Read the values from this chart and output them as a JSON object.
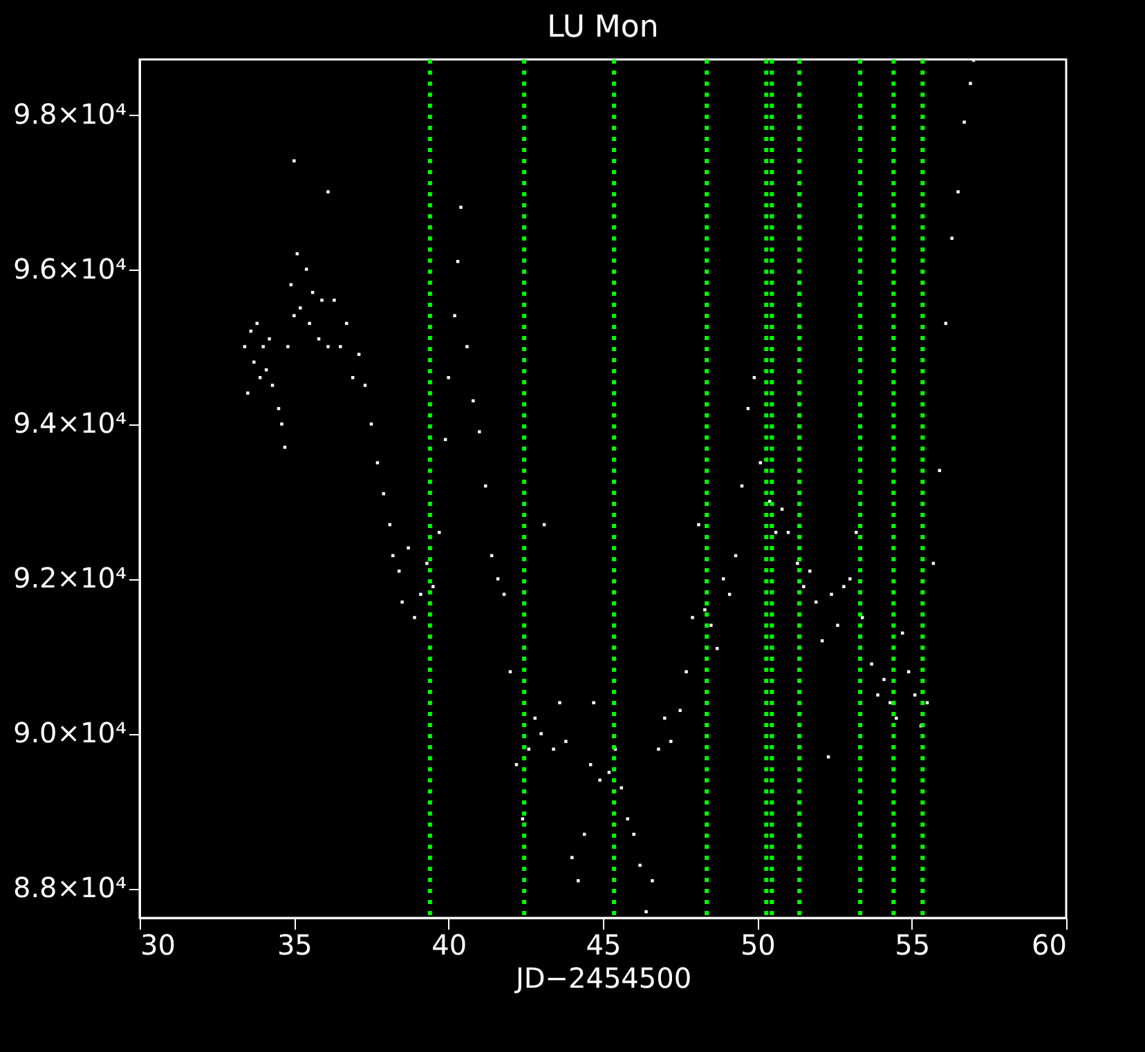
{
  "chart_data": {
    "type": "scatter",
    "title": "LU Mon",
    "xlabel": "JD−2454500",
    "marker": "square",
    "grid": false,
    "xlim": [
      30,
      60
    ],
    "xticks": [
      30,
      35,
      40,
      45,
      50,
      55,
      60
    ],
    "ylim": [
      87620,
      98710
    ],
    "yticks": [
      {
        "value": 88000,
        "label": "8.8×10⁴"
      },
      {
        "value": 90000,
        "label": "9.0×10⁴"
      },
      {
        "value": 92000,
        "label": "9.2×10⁴"
      },
      {
        "value": 94000,
        "label": "9.4×10⁴"
      },
      {
        "value": 96000,
        "label": "9.6×10⁴"
      },
      {
        "value": 98000,
        "label": "9.8×10⁴"
      }
    ],
    "ref_lines": [
      {
        "axis": "x",
        "value": 39.4,
        "color": "#00ff00",
        "line_style": "dotted"
      },
      {
        "axis": "x",
        "value": 42.45,
        "color": "#00ff00",
        "line_style": "dotted"
      },
      {
        "axis": "x",
        "value": 45.36,
        "color": "#00ff00",
        "line_style": "dotted"
      },
      {
        "axis": "x",
        "value": 48.36,
        "color": "#00ff00",
        "line_style": "dotted"
      },
      {
        "axis": "x",
        "value": 50.29,
        "color": "#00ff00",
        "line_style": "dotted"
      },
      {
        "axis": "x",
        "value": 50.47,
        "color": "#00ff00",
        "line_style": "dotted"
      },
      {
        "axis": "x",
        "value": 51.36,
        "color": "#00ff00",
        "line_style": "dotted"
      },
      {
        "axis": "x",
        "value": 53.33,
        "color": "#00ff00",
        "line_style": "dotted"
      },
      {
        "axis": "x",
        "value": 54.41,
        "color": "#00ff00",
        "line_style": "dotted"
      },
      {
        "axis": "x",
        "value": 55.35,
        "color": "#00ff00",
        "line_style": "dotted"
      }
    ],
    "series": [
      {
        "color": "#ffffff",
        "x": [
          33.4,
          33.5,
          33.6,
          33.7,
          33.8,
          33.9,
          34.0,
          34.1,
          34.2,
          34.3,
          34.5,
          34.6,
          34.7,
          34.8,
          34.9,
          35.0,
          35.0,
          35.1,
          35.2,
          35.4,
          35.5,
          35.6,
          35.8,
          35.9,
          36.1,
          36.1,
          36.3,
          36.5,
          36.7,
          36.9,
          37.1,
          37.3,
          37.5,
          37.7,
          37.9,
          38.1,
          38.2,
          38.4,
          38.5,
          38.7,
          38.9,
          39.1,
          39.3,
          39.5,
          39.7,
          39.9,
          40.0,
          40.2,
          40.3,
          40.4,
          40.6,
          40.8,
          41.0,
          41.2,
          41.4,
          41.6,
          41.8,
          42.0,
          42.2,
          42.4,
          42.6,
          42.8,
          43.0,
          43.1,
          43.4,
          43.6,
          43.8,
          44.0,
          44.2,
          44.4,
          44.6,
          44.7,
          44.9,
          45.2,
          45.4,
          45.6,
          45.8,
          46.0,
          46.2,
          46.4,
          46.6,
          46.8,
          47.0,
          47.2,
          47.5,
          47.7,
          47.9,
          48.1,
          48.3,
          48.5,
          48.7,
          48.9,
          49.1,
          49.3,
          49.5,
          49.7,
          49.9,
          50.1,
          50.4,
          50.6,
          50.8,
          51.0,
          51.3,
          51.5,
          51.7,
          51.9,
          52.1,
          52.3,
          52.4,
          52.6,
          52.8,
          53.0,
          53.2,
          53.4,
          53.7,
          53.9,
          54.1,
          54.3,
          54.5,
          54.7,
          54.9,
          55.1,
          55.3,
          55.5,
          55.7,
          55.9,
          56.1,
          56.3,
          56.5,
          56.7,
          56.9,
          57.0
        ],
        "values": [
          95000,
          94400,
          95200,
          94800,
          95300,
          94600,
          95000,
          94700,
          95100,
          94500,
          94200,
          94000,
          93700,
          95000,
          95800,
          97400,
          95400,
          96200,
          95500,
          96000,
          95300,
          95700,
          95100,
          95600,
          97000,
          95000,
          95600,
          95000,
          95300,
          94600,
          94900,
          94500,
          94000,
          93500,
          93100,
          92700,
          92300,
          92100,
          91700,
          92400,
          91500,
          91800,
          92200,
          91900,
          92600,
          93800,
          94600,
          95400,
          96100,
          96800,
          95000,
          94300,
          93900,
          93200,
          92300,
          92000,
          91800,
          90800,
          89600,
          88900,
          89800,
          90200,
          90000,
          92700,
          89800,
          90400,
          89900,
          88400,
          88100,
          88700,
          89600,
          90400,
          89400,
          89500,
          89800,
          89300,
          88900,
          88700,
          88300,
          87700,
          88100,
          89800,
          90200,
          89900,
          90300,
          90800,
          91500,
          92700,
          91600,
          91400,
          91100,
          92000,
          91800,
          92300,
          93200,
          94200,
          94600,
          93500,
          93000,
          92600,
          92900,
          92600,
          92200,
          91900,
          92100,
          91700,
          91200,
          89700,
          91800,
          91400,
          91900,
          92000,
          92600,
          91500,
          90900,
          90500,
          90700,
          90400,
          90200,
          91300,
          90800,
          90500,
          90100,
          90400,
          92200,
          93400,
          95300,
          96400,
          97000,
          97900,
          98400,
          98700
        ]
      }
    ]
  }
}
